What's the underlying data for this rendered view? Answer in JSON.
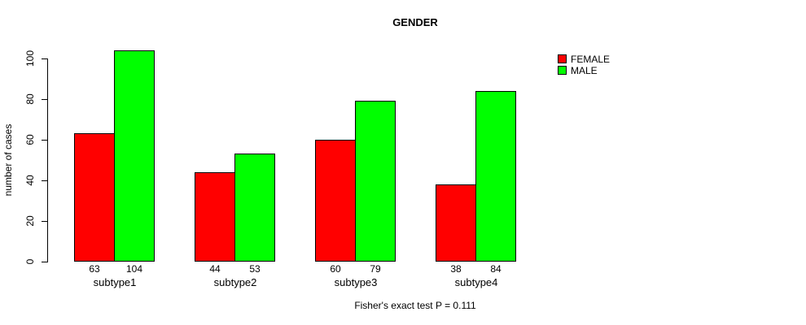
{
  "title": "GENDER",
  "caption": "Fisher's exact test P = 0.111",
  "colors": {
    "female": "#FF0000",
    "male": "#00FF00",
    "axis": "#000000",
    "background": "#FFFFFF"
  },
  "legend": {
    "items": [
      {
        "label": "FEMALE",
        "color": "#FF0000"
      },
      {
        "label": "MALE",
        "color": "#00FF00"
      }
    ]
  },
  "chart_data": {
    "type": "bar",
    "title": "GENDER",
    "xlabel": "",
    "ylabel": "number of cases",
    "categories": [
      "subtype1",
      "subtype2",
      "subtype3",
      "subtype4"
    ],
    "series": [
      {
        "name": "FEMALE",
        "color": "#FF0000",
        "values": [
          63,
          44,
          60,
          38
        ]
      },
      {
        "name": "MALE",
        "color": "#00FF00",
        "values": [
          104,
          53,
          79,
          84
        ]
      }
    ],
    "bar_value_labels": {
      "FEMALE": [
        63,
        44,
        60,
        38
      ],
      "MALE": [
        104,
        53,
        79,
        84
      ]
    },
    "yticks": [
      0,
      20,
      40,
      60,
      80,
      100
    ],
    "ylim": [
      0,
      110
    ],
    "grid": false,
    "legend_position": "top-right",
    "annotation": "Fisher's exact test P = 0.111"
  }
}
